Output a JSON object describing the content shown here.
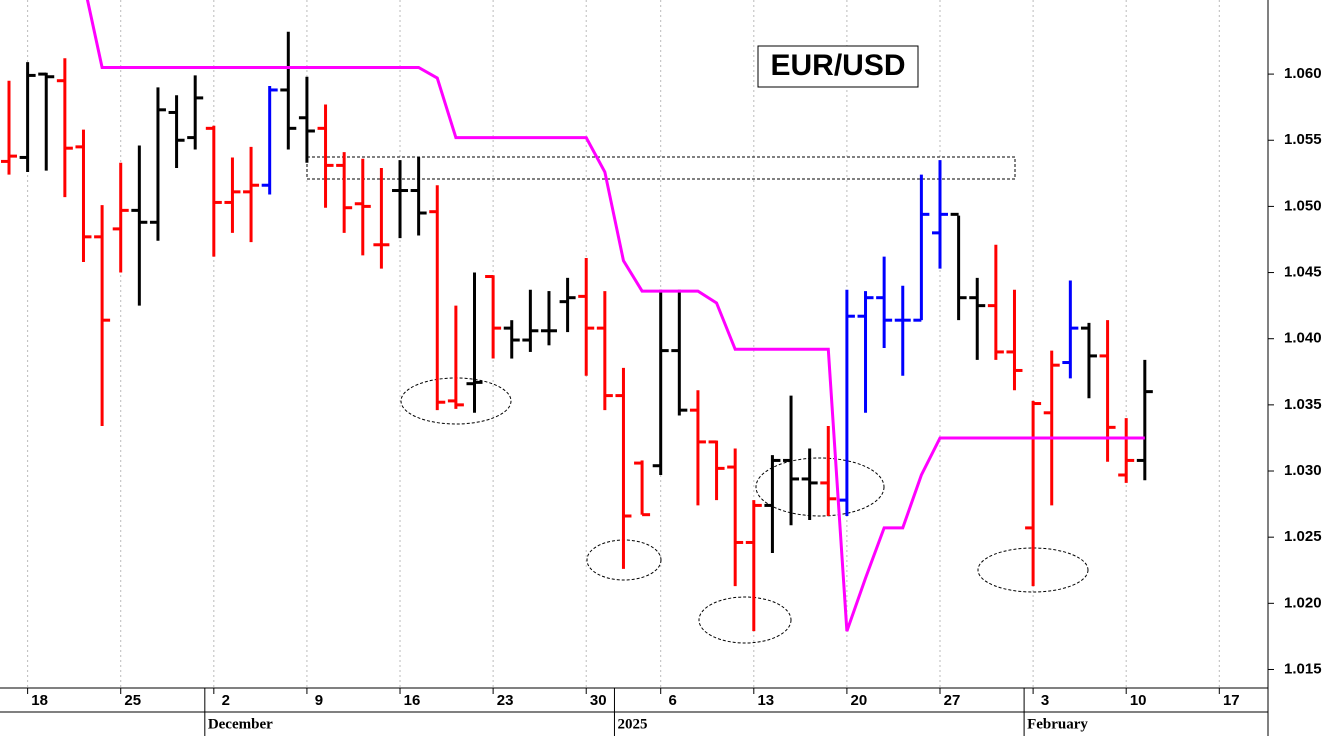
{
  "chart_data": {
    "type": "ohlc",
    "title": "EUR/USD",
    "categories": [
      null,
      "18",
      null,
      null,
      null,
      null,
      "25",
      null,
      null,
      null,
      null,
      "2",
      null,
      null,
      null,
      null,
      "9",
      null,
      null,
      null,
      null,
      "16",
      null,
      null,
      null,
      null,
      "23",
      null,
      null,
      null,
      null,
      "30",
      null,
      null,
      null,
      "6",
      null,
      null,
      null,
      null,
      "13",
      null,
      null,
      null,
      null,
      "20",
      null,
      null,
      null,
      null,
      "27",
      null,
      null,
      null,
      null,
      "3",
      null,
      null,
      null,
      null,
      "10",
      null,
      null,
      null,
      null,
      "17"
    ],
    "month_labels": [
      null,
      null,
      null,
      null,
      null,
      null,
      null,
      null,
      null,
      null,
      null,
      "December",
      null,
      null,
      null,
      null,
      null,
      null,
      null,
      null,
      null,
      null,
      null,
      null,
      null,
      null,
      null,
      null,
      null,
      null,
      null,
      null,
      null,
      "2025",
      null,
      null,
      null,
      null,
      null,
      null,
      null,
      null,
      null,
      null,
      null,
      null,
      null,
      null,
      null,
      null,
      null,
      null,
      null,
      null,
      null,
      "February",
      null,
      null,
      null,
      null,
      null,
      null,
      null,
      null,
      null,
      null
    ],
    "open": [
      1.0534,
      1.0537,
      1.06,
      1.0595,
      1.0545,
      1.0477,
      1.0483,
      1.0497,
      1.0488,
      1.0571,
      1.0552,
      1.0559,
      1.0503,
      1.0511,
      1.0516,
      1.0588,
      1.0567,
      1.0559,
      1.0531,
      1.0502,
      1.0471,
      1.0512,
      1.0512,
      1.0496,
      1.0353,
      1.0366,
      1.0447,
      1.0408,
      1.0399,
      1.0406,
      1.0428,
      1.0432,
      1.0408,
      1.0357,
      1.0306,
      1.0304,
      1.0391,
      1.0346,
      1.0322,
      1.0303,
      1.0246,
      1.0274,
      1.0308,
      1.0294,
      1.0291,
      1.0278,
      1.0417,
      1.0431,
      1.0414,
      1.0414,
      1.048,
      1.0494,
      1.0431,
      1.0425,
      1.039,
      1.0257,
      1.0344,
      1.0382,
      1.0408,
      1.0387,
      1.0297,
      1.0308,
      null,
      null,
      null,
      null
    ],
    "high": [
      1.0595,
      1.0609,
      1.0601,
      1.0612,
      1.0558,
      1.0501,
      1.0533,
      1.0546,
      1.059,
      1.0584,
      1.0599,
      1.0561,
      1.0537,
      1.0545,
      1.0591,
      1.0632,
      1.0598,
      1.0577,
      1.0541,
      1.0536,
      1.0529,
      1.0535,
      1.0537,
      1.0516,
      1.0425,
      1.045,
      1.0448,
      1.0414,
      1.0437,
      1.0436,
      1.0446,
      1.0461,
      1.0436,
      1.0378,
      1.0308,
      1.0437,
      1.0437,
      1.0361,
      1.0323,
      1.0317,
      1.0278,
      1.0312,
      1.0357,
      1.0317,
      1.0334,
      1.0437,
      1.0436,
      1.0462,
      1.044,
      1.0524,
      1.0535,
      1.0493,
      1.0446,
      1.0471,
      1.0437,
      1.0353,
      1.0391,
      1.0444,
      1.0412,
      1.0414,
      1.034,
      1.0384,
      null,
      null,
      null,
      null
    ],
    "low": [
      1.0524,
      1.0526,
      1.0527,
      1.0507,
      1.0458,
      1.0334,
      1.045,
      1.0425,
      1.0474,
      1.0529,
      1.0543,
      1.0462,
      1.048,
      1.0473,
      1.0509,
      1.0543,
      1.0533,
      1.0499,
      1.048,
      1.0463,
      1.0453,
      1.0476,
      1.0478,
      1.0346,
      1.0347,
      1.0344,
      1.0385,
      1.0385,
      1.039,
      1.0395,
      1.0405,
      1.0372,
      1.0346,
      1.0226,
      1.0267,
      1.0297,
      1.0342,
      1.0274,
      1.0278,
      1.0213,
      1.0179,
      1.0238,
      1.0259,
      1.0263,
      1.0266,
      1.0266,
      1.0344,
      1.0393,
      1.0372,
      1.0414,
      1.0453,
      1.0414,
      1.0384,
      1.0384,
      1.0361,
      1.0213,
      1.0274,
      1.037,
      1.0355,
      1.0307,
      1.0291,
      1.0293,
      null,
      null,
      null,
      null
    ],
    "close": [
      1.0538,
      1.0599,
      1.0598,
      1.0544,
      1.0477,
      1.0414,
      1.0497,
      1.0488,
      1.0573,
      1.055,
      1.0582,
      1.0503,
      1.0511,
      1.0516,
      1.0588,
      1.0559,
      1.0557,
      1.0531,
      1.0499,
      1.05,
      1.0471,
      1.0512,
      1.0495,
      1.0352,
      1.035,
      1.0367,
      1.0408,
      1.0399,
      1.0406,
      1.0406,
      1.0431,
      1.0408,
      1.0357,
      1.0266,
      1.0267,
      1.0391,
      1.0346,
      1.0322,
      1.0302,
      1.0246,
      1.0274,
      1.0308,
      1.0294,
      1.0291,
      1.0279,
      1.0417,
      1.0431,
      1.0414,
      1.0414,
      1.0494,
      1.0494,
      1.0431,
      1.0425,
      1.039,
      1.0376,
      1.0351,
      1.038,
      1.0408,
      1.0387,
      1.0333,
      1.0308,
      1.036,
      null,
      null,
      null,
      null
    ],
    "colors": [
      "#ff0000",
      "#000000",
      "#000000",
      "#ff0000",
      "#ff0000",
      "#ff0000",
      "#ff0000",
      "#000000",
      "#000000",
      "#000000",
      "#000000",
      "#ff0000",
      "#ff0000",
      "#ff0000",
      "#0000ff",
      "#000000",
      "#000000",
      "#ff0000",
      "#ff0000",
      "#ff0000",
      "#ff0000",
      "#000000",
      "#000000",
      "#ff0000",
      "#ff0000",
      "#000000",
      "#ff0000",
      "#000000",
      "#000000",
      "#000000",
      "#000000",
      "#ff0000",
      "#ff0000",
      "#ff0000",
      "#ff0000",
      "#000000",
      "#000000",
      "#ff0000",
      "#ff0000",
      "#ff0000",
      "#ff0000",
      "#000000",
      "#000000",
      "#000000",
      "#ff0000",
      "#0000ff",
      "#0000ff",
      "#0000ff",
      "#0000ff",
      "#0000ff",
      "#0000ff",
      "#000000",
      "#000000",
      "#ff0000",
      "#ff0000",
      "#ff0000",
      "#ff0000",
      "#0000ff",
      "#000000",
      "#ff0000",
      "#ff0000",
      "#000000",
      null,
      null,
      null,
      null
    ],
    "line": {
      "color": "#ff00ff",
      "values": [
        null,
        null,
        null,
        null,
        1.067,
        1.0605,
        1.0605,
        1.0605,
        1.0605,
        1.0605,
        1.0605,
        1.0605,
        1.0605,
        1.0605,
        1.0605,
        1.0605,
        1.0605,
        1.0605,
        1.0605,
        1.0605,
        1.0605,
        1.0605,
        1.0605,
        1.0597,
        1.0552,
        1.0552,
        1.0552,
        1.0552,
        1.0552,
        1.0552,
        1.0552,
        1.0552,
        1.0526,
        1.0459,
        1.0436,
        1.0436,
        1.0436,
        1.0436,
        1.0427,
        1.0392,
        1.0392,
        1.0392,
        1.0392,
        1.0392,
        1.0392,
        1.0179,
        1.0219,
        1.0257,
        1.0257,
        1.0297,
        1.0325,
        1.0325,
        1.0325,
        1.0325,
        1.0325,
        1.0325,
        1.0325,
        1.0325,
        1.0325,
        1.0325,
        1.0325,
        1.0325,
        null,
        null,
        null,
        null
      ]
    },
    "ylim": [
      1.0136,
      1.0656
    ],
    "yticks": [
      1.015,
      {
        "value": 1.02,
        "label": "1.020"
      },
      1.025,
      {
        "value": 1.03,
        "label": "1.030"
      },
      1.035,
      {
        "value": 1.04,
        "label": "1.040"
      },
      1.045,
      {
        "value": 1.05,
        "label": "1.050"
      },
      1.055,
      {
        "value": 1.06,
        "label": "1.060"
      }
    ],
    "grid": true
  }
}
